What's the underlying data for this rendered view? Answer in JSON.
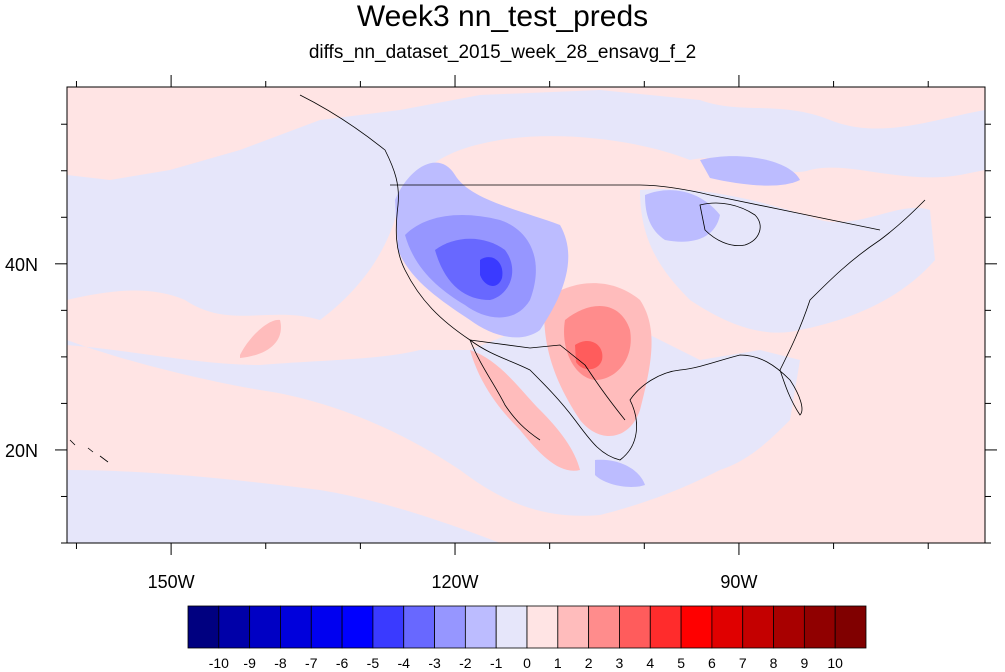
{
  "title": "Week3 nn_test_preds",
  "subtitle": "diffs_nn_dataset_2015_week_28_ensavg_f_2",
  "map": {
    "lon_range": [
      -161,
      -64
    ],
    "lat_range": [
      10,
      59
    ],
    "lon_ticks": [
      {
        "value": -150,
        "label": "150W"
      },
      {
        "value": -120,
        "label": "120W"
      },
      {
        "value": -90,
        "label": "90W"
      }
    ],
    "lat_ticks": [
      {
        "value": 40,
        "label": "40N"
      },
      {
        "value": 20,
        "label": "20N"
      }
    ]
  },
  "colorbar": {
    "labels": [
      "-10",
      "-9",
      "-8",
      "-7",
      "-6",
      "-5",
      "-4",
      "-3",
      "-2",
      "-1",
      "0",
      "1",
      "2",
      "3",
      "4",
      "5",
      "6",
      "7",
      "8",
      "9",
      "10"
    ],
    "colors": [
      "#000080",
      "#0000a8",
      "#0000c4",
      "#0000dc",
      "#0000f0",
      "#0000ff",
      "#3a3aff",
      "#6868ff",
      "#9696ff",
      "#bcbcff",
      "#e6e6fa",
      "#ffe4e4",
      "#ffbcbc",
      "#ff8c8c",
      "#ff5c5c",
      "#ff2c2c",
      "#ff0000",
      "#e00000",
      "#c40000",
      "#a80000",
      "#900000",
      "#800000"
    ]
  }
}
